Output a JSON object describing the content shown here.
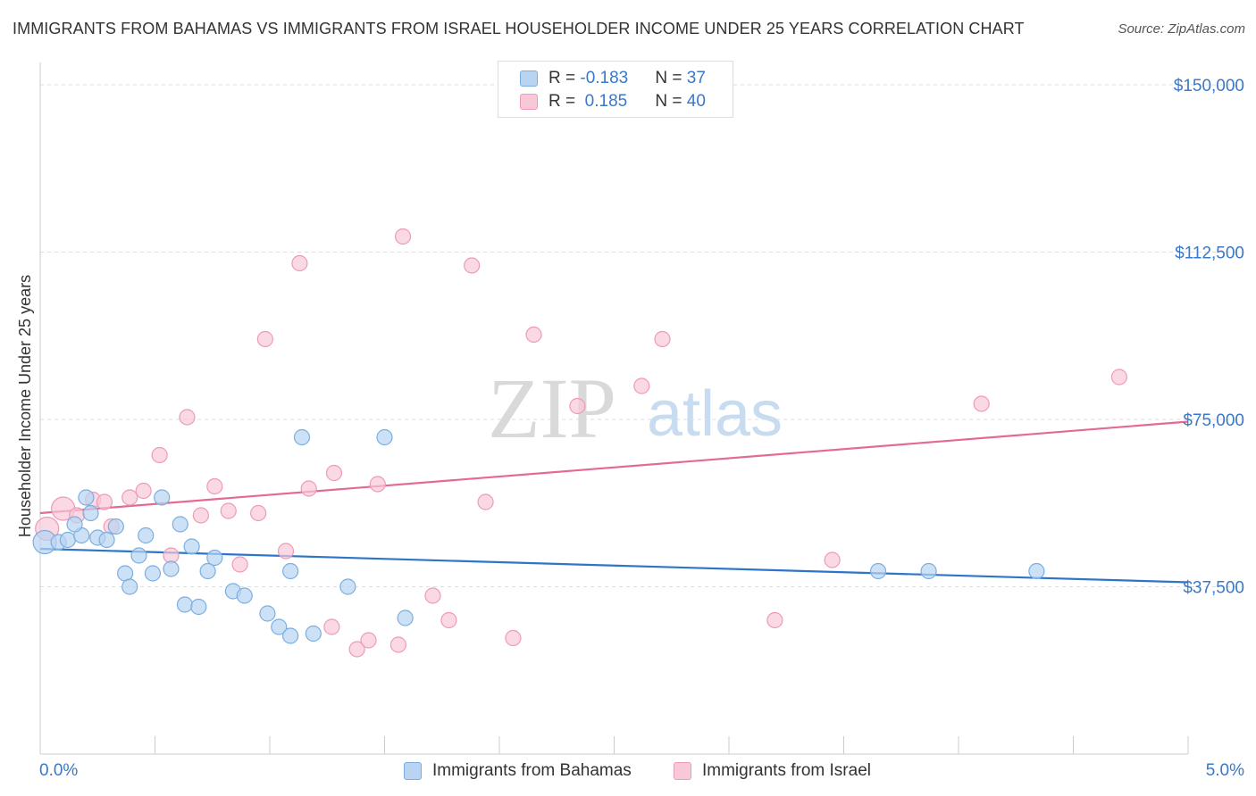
{
  "title": "IMMIGRANTS FROM BAHAMAS VS IMMIGRANTS FROM ISRAEL HOUSEHOLDER INCOME UNDER 25 YEARS CORRELATION CHART",
  "source": "Source: ZipAtlas.com",
  "watermark": {
    "zip": "ZIP",
    "atlas": "atlas"
  },
  "legend": {
    "rows": [
      {
        "r_label": "R = ",
        "r_value": "-0.183",
        "n_label": "N = ",
        "n_value": "37"
      },
      {
        "r_label": "R = ",
        "r_value": " 0.185",
        "n_label": "N = ",
        "n_value": "40"
      }
    ]
  },
  "colors": {
    "bahamas_fill": "#b8d4f2",
    "bahamas_stroke": "#7aaee0",
    "bahamas_line": "#2e74c9",
    "israel_fill": "#f8c8d8",
    "israel_stroke": "#ee9ab5",
    "israel_line": "#e46a93",
    "tick_label": "#3a78c9",
    "grid": "#dddddd"
  },
  "chart_data": {
    "type": "scatter",
    "title": "IMMIGRANTS FROM BAHAMAS VS IMMIGRANTS FROM ISRAEL HOUSEHOLDER INCOME UNDER 25 YEARS CORRELATION CHART",
    "xlabel": "",
    "ylabel": "Householder Income Under 25 years",
    "xlim": [
      0,
      5
    ],
    "ylim": [
      0,
      155000
    ],
    "x_tick_labels": [
      "0.0%",
      "5.0%"
    ],
    "y_ticks": [
      37500,
      75000,
      112500,
      150000
    ],
    "y_tick_labels": [
      "$37,500",
      "$75,000",
      "$112,500",
      "$150,000"
    ],
    "grid": true,
    "legend_position": "top-center",
    "series": [
      {
        "name": "Immigrants from Bahamas",
        "trend": {
          "x": [
            0,
            5
          ],
          "y": [
            46000,
            38500
          ]
        },
        "points": [
          {
            "x": 0.02,
            "y": 47500,
            "big": true
          },
          {
            "x": 0.08,
            "y": 47500
          },
          {
            "x": 0.12,
            "y": 48000
          },
          {
            "x": 0.18,
            "y": 49000
          },
          {
            "x": 0.15,
            "y": 51500
          },
          {
            "x": 0.2,
            "y": 57500
          },
          {
            "x": 0.22,
            "y": 54000
          },
          {
            "x": 0.25,
            "y": 48500
          },
          {
            "x": 0.29,
            "y": 48000
          },
          {
            "x": 0.33,
            "y": 51000
          },
          {
            "x": 0.37,
            "y": 40500
          },
          {
            "x": 0.39,
            "y": 37500
          },
          {
            "x": 0.43,
            "y": 44500
          },
          {
            "x": 0.46,
            "y": 49000
          },
          {
            "x": 0.49,
            "y": 40500
          },
          {
            "x": 0.53,
            "y": 57500
          },
          {
            "x": 0.57,
            "y": 41500
          },
          {
            "x": 0.61,
            "y": 51500
          },
          {
            "x": 0.63,
            "y": 33500
          },
          {
            "x": 0.66,
            "y": 46500
          },
          {
            "x": 0.69,
            "y": 33000
          },
          {
            "x": 0.73,
            "y": 41000
          },
          {
            "x": 0.76,
            "y": 44000
          },
          {
            "x": 0.84,
            "y": 36500
          },
          {
            "x": 0.89,
            "y": 35500
          },
          {
            "x": 0.99,
            "y": 31500
          },
          {
            "x": 1.04,
            "y": 28500
          },
          {
            "x": 1.09,
            "y": 26500
          },
          {
            "x": 1.09,
            "y": 41000
          },
          {
            "x": 1.14,
            "y": 71000
          },
          {
            "x": 1.19,
            "y": 27000
          },
          {
            "x": 1.34,
            "y": 37500
          },
          {
            "x": 1.5,
            "y": 71000
          },
          {
            "x": 1.59,
            "y": 30500
          },
          {
            "x": 3.65,
            "y": 41000
          },
          {
            "x": 3.87,
            "y": 41000
          },
          {
            "x": 4.34,
            "y": 41000
          }
        ]
      },
      {
        "name": "Immigrants from Israel",
        "trend": {
          "x": [
            0,
            5
          ],
          "y": [
            54000,
            74500
          ]
        },
        "points": [
          {
            "x": 0.03,
            "y": 50500,
            "big": true
          },
          {
            "x": 0.1,
            "y": 55000,
            "big": true
          },
          {
            "x": 0.16,
            "y": 53500
          },
          {
            "x": 0.23,
            "y": 57000
          },
          {
            "x": 0.28,
            "y": 56500
          },
          {
            "x": 0.31,
            "y": 51000
          },
          {
            "x": 0.39,
            "y": 57500
          },
          {
            "x": 0.45,
            "y": 59000
          },
          {
            "x": 0.52,
            "y": 67000
          },
          {
            "x": 0.57,
            "y": 44500
          },
          {
            "x": 0.64,
            "y": 75500
          },
          {
            "x": 0.7,
            "y": 53500
          },
          {
            "x": 0.76,
            "y": 60000
          },
          {
            "x": 0.82,
            "y": 54500
          },
          {
            "x": 0.87,
            "y": 42500
          },
          {
            "x": 0.95,
            "y": 54000
          },
          {
            "x": 0.98,
            "y": 93000
          },
          {
            "x": 1.07,
            "y": 45500
          },
          {
            "x": 1.13,
            "y": 110000
          },
          {
            "x": 1.17,
            "y": 59500
          },
          {
            "x": 1.27,
            "y": 28500
          },
          {
            "x": 1.28,
            "y": 63000
          },
          {
            "x": 1.38,
            "y": 23500
          },
          {
            "x": 1.43,
            "y": 25500
          },
          {
            "x": 1.47,
            "y": 60500
          },
          {
            "x": 1.56,
            "y": 24500
          },
          {
            "x": 1.58,
            "y": 116000
          },
          {
            "x": 1.71,
            "y": 35500
          },
          {
            "x": 1.78,
            "y": 30000
          },
          {
            "x": 1.88,
            "y": 109500
          },
          {
            "x": 1.94,
            "y": 56500
          },
          {
            "x": 2.06,
            "y": 26000
          },
          {
            "x": 2.15,
            "y": 94000
          },
          {
            "x": 2.34,
            "y": 78000
          },
          {
            "x": 2.62,
            "y": 82500
          },
          {
            "x": 2.71,
            "y": 93000
          },
          {
            "x": 3.2,
            "y": 30000
          },
          {
            "x": 3.45,
            "y": 43500
          },
          {
            "x": 4.1,
            "y": 78500
          },
          {
            "x": 4.7,
            "y": 84500
          }
        ]
      }
    ]
  }
}
